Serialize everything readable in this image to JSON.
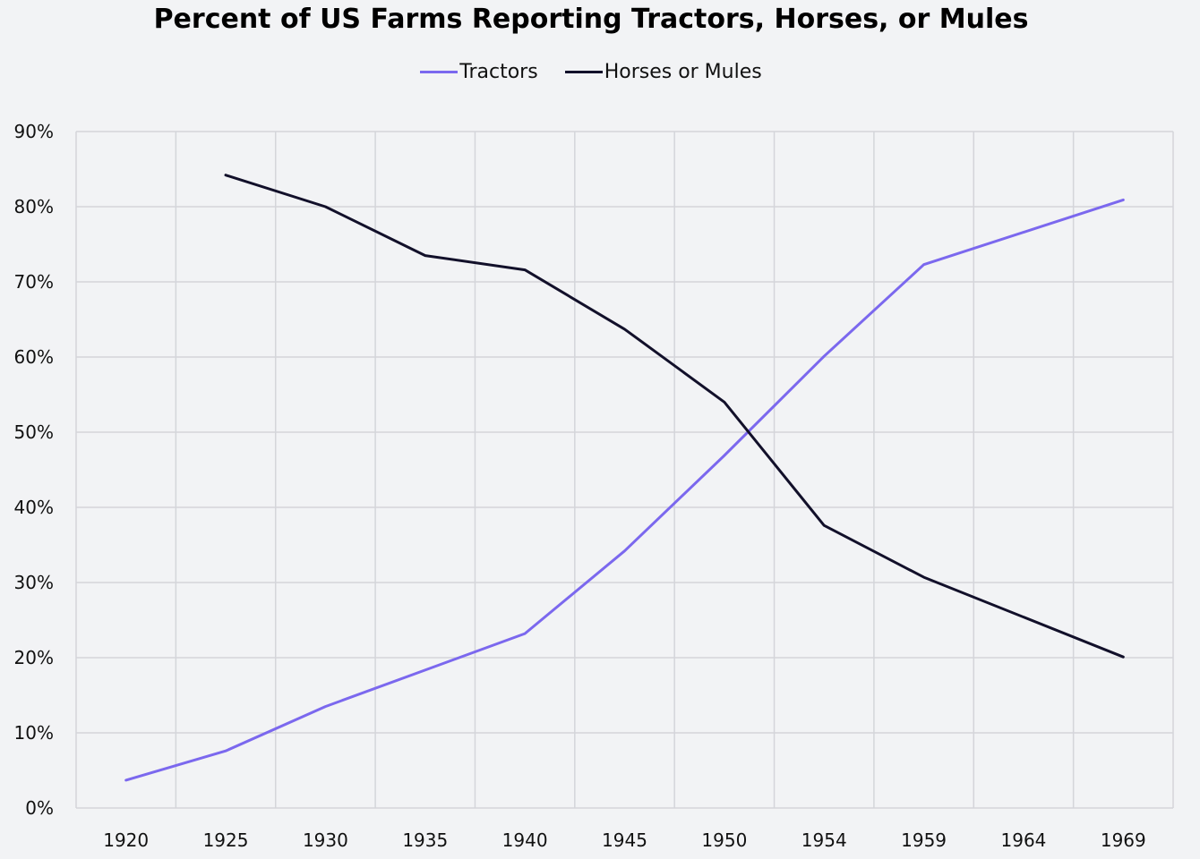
{
  "chart_data": {
    "type": "line",
    "title": "Percent of US Farms Reporting Tractors, Horses, or Mules",
    "xlabel": "",
    "ylabel": "",
    "categories": [
      "1920",
      "1925",
      "1930",
      "1935",
      "1940",
      "1945",
      "1950",
      "1954",
      "1959",
      "1964",
      "1969"
    ],
    "yticks": [
      "0%",
      "10%",
      "20%",
      "30%",
      "40%",
      "50%",
      "60%",
      "70%",
      "80%",
      "90%"
    ],
    "ylim": [
      0,
      90
    ],
    "grid": true,
    "legend_position": "top-center",
    "series": [
      {
        "name": "Tractors",
        "color": "#7b68ee",
        "values": [
          3.7,
          7.6,
          13.5,
          null,
          23.2,
          34.2,
          46.9,
          60.1,
          72.3,
          null,
          80.9
        ]
      },
      {
        "name": "Horses or Mules",
        "color": "#12102a",
        "values": [
          null,
          84.2,
          80.0,
          73.5,
          71.6,
          63.7,
          54.0,
          37.6,
          30.7,
          null,
          20.1
        ]
      }
    ]
  }
}
